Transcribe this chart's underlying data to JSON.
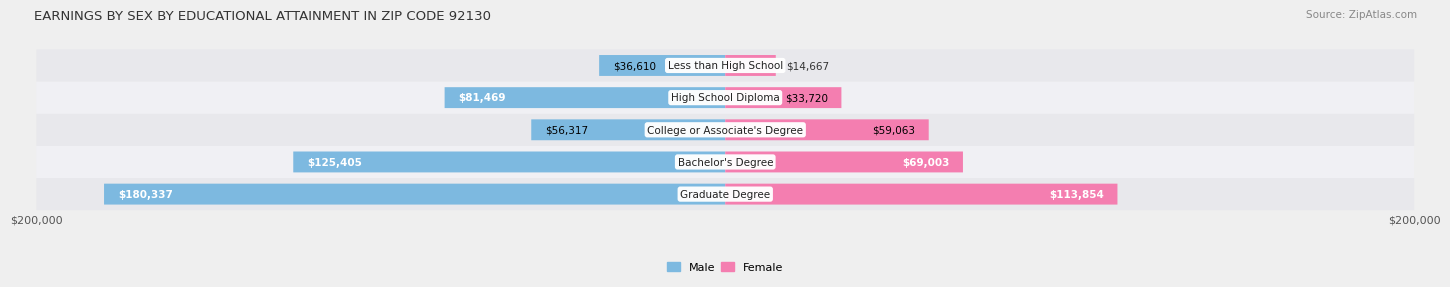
{
  "title": "EARNINGS BY SEX BY EDUCATIONAL ATTAINMENT IN ZIP CODE 92130",
  "source": "Source: ZipAtlas.com",
  "categories": [
    "Less than High School",
    "High School Diploma",
    "College or Associate's Degree",
    "Bachelor's Degree",
    "Graduate Degree"
  ],
  "male_values": [
    36610,
    81469,
    56317,
    125405,
    180337
  ],
  "female_values": [
    14667,
    33720,
    59063,
    69003,
    113854
  ],
  "male_color": "#7db9e0",
  "female_color": "#f47eb0",
  "row_colors": [
    "#e8e8ec",
    "#f0f0f4"
  ],
  "bg_color": "#efefef",
  "max_val": 200000,
  "axis_label_left": "$200,000",
  "axis_label_right": "$200,000",
  "title_fontsize": 9.5,
  "source_fontsize": 7.5,
  "value_fontsize": 7.5,
  "cat_fontsize": 7.5,
  "legend_fontsize": 8
}
